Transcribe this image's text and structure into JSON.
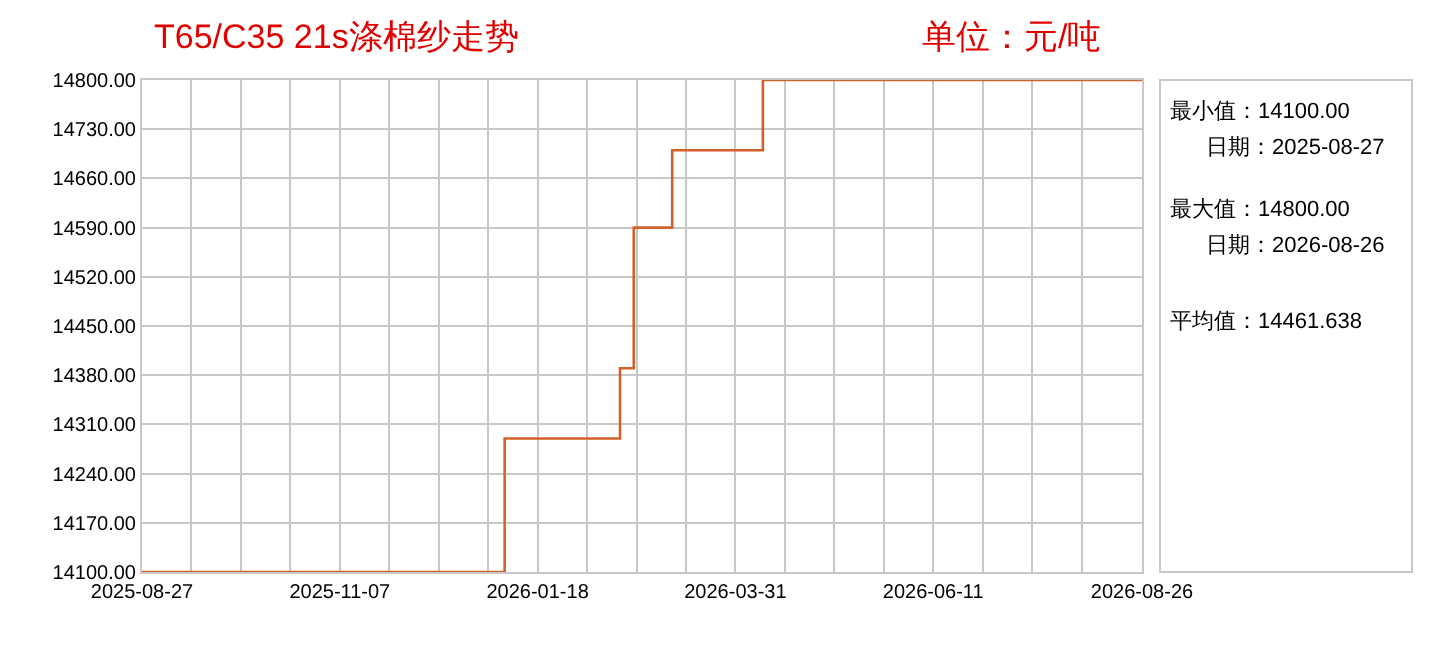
{
  "chart_data": {
    "type": "step",
    "title": "T65/C35 21s涤棉纱走势",
    "subtitle": "单位：元/吨",
    "x": [
      "2025-08-27",
      "2026-01-06",
      "2026-02-17",
      "2026-02-22",
      "2026-03-08",
      "2026-04-10",
      "2026-08-26"
    ],
    "series": [
      {
        "color": "#d2602a",
        "values": [
          14100,
          14290,
          14390,
          14590,
          14700,
          14800,
          14800
        ]
      }
    ],
    "xlim": [
      "2025-08-27",
      "2026-08-26"
    ],
    "xticks": [
      {
        "value": "2025-08-27",
        "label": "2025-08-27"
      },
      {
        "value": "2025-09-14",
        "label": null
      },
      {
        "value": "2025-10-02",
        "label": null
      },
      {
        "value": "2025-10-20",
        "label": null
      },
      {
        "value": "2025-11-07",
        "label": "2025-11-07"
      },
      {
        "value": "2025-11-25",
        "label": null
      },
      {
        "value": "2025-12-13",
        "label": null
      },
      {
        "value": "2025-12-31",
        "label": null
      },
      {
        "value": "2026-01-18",
        "label": "2026-01-18"
      },
      {
        "value": "2026-02-05",
        "label": null
      },
      {
        "value": "2026-02-23",
        "label": null
      },
      {
        "value": "2026-03-13",
        "label": null
      },
      {
        "value": "2026-03-31",
        "label": "2026-03-31"
      },
      {
        "value": "2026-04-18",
        "label": null
      },
      {
        "value": "2026-05-06",
        "label": null
      },
      {
        "value": "2026-05-24",
        "label": null
      },
      {
        "value": "2026-06-11",
        "label": "2026-06-11"
      },
      {
        "value": "2026-06-29",
        "label": null
      },
      {
        "value": "2026-07-17",
        "label": null
      },
      {
        "value": "2026-08-04",
        "label": null
      },
      {
        "value": "2026-08-26",
        "label": "2026-08-26"
      }
    ],
    "ylim": [
      14100,
      14800
    ],
    "yticks": [
      {
        "value": 14100,
        "label": "14100.00"
      },
      {
        "value": 14170,
        "label": "14170.00"
      },
      {
        "value": 14240,
        "label": "14240.00"
      },
      {
        "value": 14310,
        "label": "14310.00"
      },
      {
        "value": 14380,
        "label": "14380.00"
      },
      {
        "value": 14450,
        "label": "14450.00"
      },
      {
        "value": 14520,
        "label": "14520.00"
      },
      {
        "value": 14590,
        "label": "14590.00"
      },
      {
        "value": 14660,
        "label": "14660.00"
      },
      {
        "value": 14730,
        "label": "14730.00"
      },
      {
        "value": 14800,
        "label": "14800.00"
      }
    ],
    "grid": true,
    "marker": "none",
    "line_style": "solid",
    "annotations": [
      "最小值：14100.00",
      "日期：2025-08-27",
      "最大值：14800.00",
      "日期：2026-08-26",
      "平均值：14461.638"
    ]
  }
}
